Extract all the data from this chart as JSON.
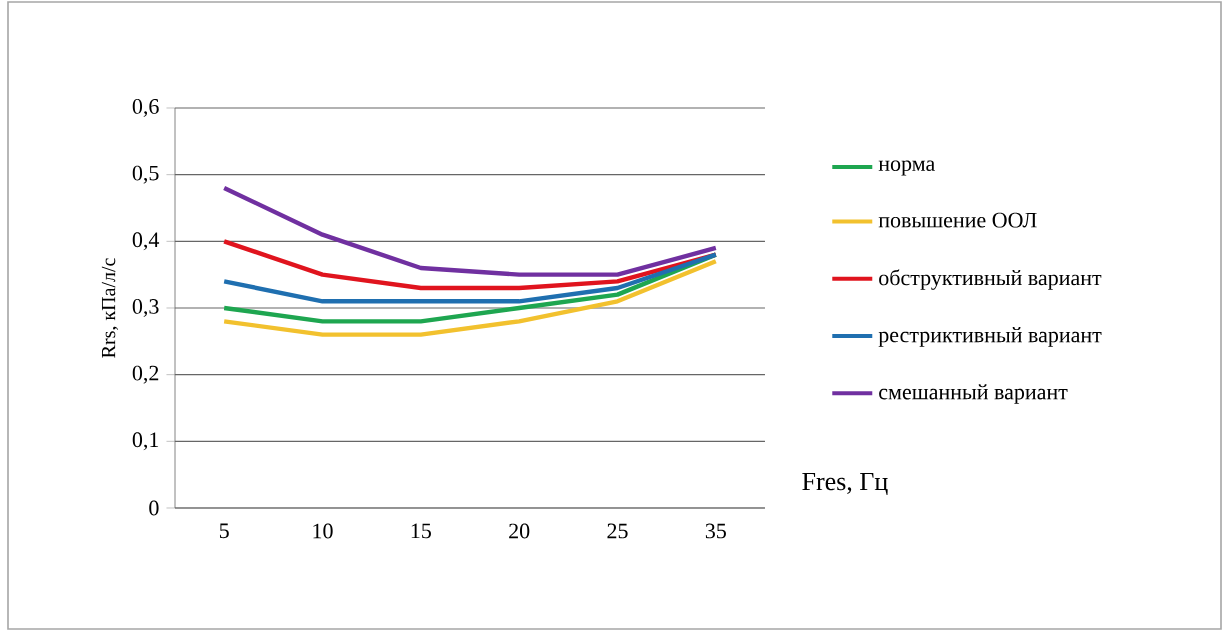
{
  "chart_data": {
    "type": "line",
    "xlabel": "Fres, Гц",
    "ylabel": "Rrs, кПа/л/с",
    "categories": [
      "5",
      "10",
      "15",
      "20",
      "25",
      "35"
    ],
    "series": [
      {
        "name": "норма",
        "color": "#1ea650",
        "values": [
          0.3,
          0.28,
          0.28,
          0.3,
          0.32,
          0.38
        ]
      },
      {
        "name": "повышение ООЛ",
        "color": "#f2c12e",
        "values": [
          0.28,
          0.26,
          0.26,
          0.28,
          0.31,
          0.37
        ]
      },
      {
        "name": "обструктивный вариант",
        "color": "#e0141e",
        "values": [
          0.4,
          0.35,
          0.33,
          0.33,
          0.34,
          0.38
        ]
      },
      {
        "name": "рестриктивный вариант",
        "color": "#1f6fb0",
        "values": [
          0.34,
          0.31,
          0.31,
          0.31,
          0.33,
          0.38
        ]
      },
      {
        "name": "смешанный вариант",
        "color": "#7030a0",
        "values": [
          0.48,
          0.41,
          0.36,
          0.35,
          0.35,
          0.39
        ]
      }
    ],
    "ylim": [
      0,
      0.6
    ],
    "yticks": [
      {
        "value": 0,
        "label": "0"
      },
      {
        "value": 0.1,
        "label": "0,1"
      },
      {
        "value": 0.2,
        "label": "0,2"
      },
      {
        "value": 0.3,
        "label": "0,3"
      },
      {
        "value": 0.4,
        "label": "0,4"
      },
      {
        "value": 0.5,
        "label": "0,5"
      },
      {
        "value": 0.6,
        "label": "0,6"
      }
    ],
    "grid": "y",
    "legend": "right",
    "marker": "none",
    "line_style": "solid"
  }
}
